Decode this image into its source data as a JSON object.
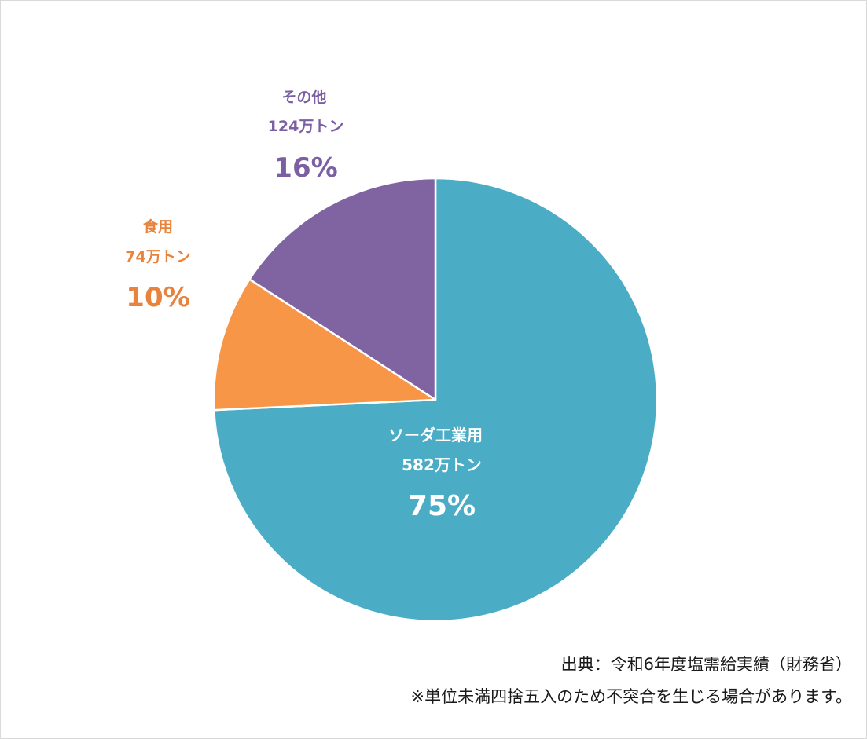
{
  "chart_data": {
    "type": "pie",
    "title": "",
    "start": "top",
    "direction": "clockwise",
    "slices": [
      {
        "category": "ソーダ工業用",
        "amount": "582万トン",
        "percent_label": "75%",
        "value": 75,
        "color": "#4BACC6",
        "label_color": "#ffffff"
      },
      {
        "category": "食用",
        "amount": "74万トン",
        "percent_label": "10%",
        "value": 10,
        "color": "#F79646",
        "label_color": "#E9823A"
      },
      {
        "category": "その他",
        "amount": "124万トン",
        "percent_label": "16%",
        "value": 16,
        "color": "#8064A2",
        "label_color": "#7C5FA3"
      }
    ]
  },
  "footer": {
    "source": "出典：令和6年度塩需給実績（財務省）",
    "note": "※単位未満四捨五入のため不突合を生じる場合があります。"
  }
}
